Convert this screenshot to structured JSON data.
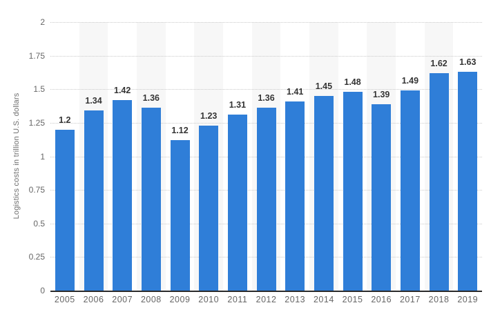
{
  "chart_data": {
    "type": "bar",
    "title": "",
    "xlabel": "",
    "ylabel": "Logistics costs in trillion U.S. dollars",
    "categories": [
      "2005",
      "2006",
      "2007",
      "2008",
      "2009",
      "2010",
      "2011",
      "2012",
      "2013",
      "2014",
      "2015",
      "2016",
      "2017",
      "2018",
      "2019"
    ],
    "values": [
      1.2,
      1.34,
      1.42,
      1.36,
      1.12,
      1.23,
      1.31,
      1.36,
      1.41,
      1.45,
      1.48,
      1.39,
      1.49,
      1.62,
      1.63
    ],
    "value_labels": [
      "1.2",
      "1.34",
      "1.42",
      "1.36",
      "1.12",
      "1.23",
      "1.31",
      "1.36",
      "1.41",
      "1.45",
      "1.48",
      "1.39",
      "1.49",
      "1.62",
      "1.63"
    ],
    "ylim": [
      0,
      2
    ],
    "yticks": [
      {
        "value": 2,
        "label": "2"
      },
      {
        "value": 1.75,
        "label": "1.75"
      },
      {
        "value": 1.5,
        "label": "1.5"
      },
      {
        "value": 1.25,
        "label": "1.25"
      },
      {
        "value": 1,
        "label": "1"
      },
      {
        "value": 0.75,
        "label": "0.75"
      },
      {
        "value": 0.5,
        "label": "0.5"
      },
      {
        "value": 0.25,
        "label": "0.25"
      },
      {
        "value": 0,
        "label": "0"
      }
    ],
    "grid": "horizontal-dotted",
    "legend": "none",
    "plot_bands": {
      "style": "alternating-category-columns",
      "shaded_categories": [
        "2006",
        "2008",
        "2010",
        "2012",
        "2014",
        "2016",
        "2018"
      ]
    },
    "colors": {
      "bar": "#2f7ed8",
      "band": "#f7f7f7",
      "gridline": "#c9c9c9",
      "axis_line": "#2b2b2b",
      "tick_text": "#666666",
      "value_label_text": "#333333",
      "background": "#ffffff"
    }
  }
}
